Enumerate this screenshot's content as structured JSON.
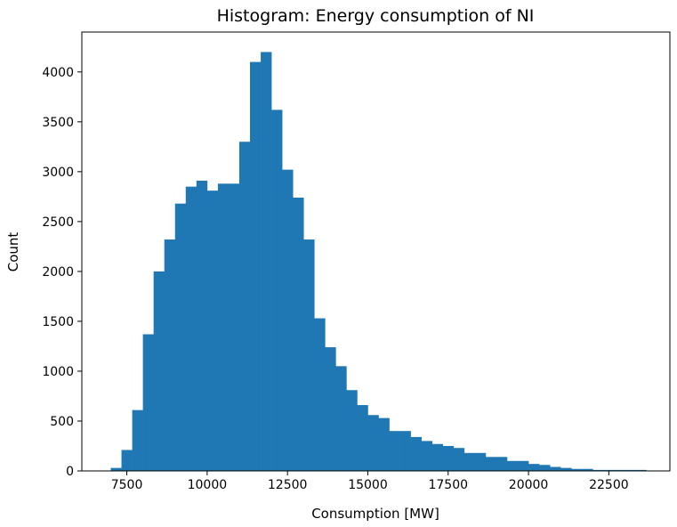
{
  "chart_data": {
    "type": "bar",
    "title": "Histogram: Energy consumption of NI",
    "xlabel": "Consumption [MW]",
    "ylabel": "Count",
    "xlim": [
      6100,
      24400
    ],
    "ylim": [
      0,
      4400
    ],
    "x_ticks": [
      7500,
      10000,
      12500,
      15000,
      17500,
      20000,
      22500
    ],
    "y_ticks": [
      0,
      500,
      1000,
      1500,
      2000,
      2500,
      3000,
      3500,
      4000
    ],
    "bin_edges": [
      7000,
      7333,
      7667,
      8000,
      8333,
      8667,
      9000,
      9333,
      9667,
      10000,
      10333,
      10667,
      11000,
      11333,
      11667,
      12000,
      12333,
      12667,
      13000,
      13333,
      13667,
      14000,
      14333,
      14667,
      15000,
      15333,
      15667,
      16000,
      16333,
      16667,
      17000,
      17333,
      17667,
      18000,
      18333,
      18667,
      19000,
      19333,
      19667,
      20000,
      20333,
      20667,
      21000,
      21333,
      21667,
      22000,
      22333,
      22667,
      23000,
      23333,
      23667
    ],
    "values": [
      30,
      210,
      610,
      1370,
      2000,
      2320,
      2680,
      2850,
      2910,
      2810,
      2880,
      2880,
      3300,
      4100,
      4200,
      3620,
      3020,
      2740,
      2320,
      1530,
      1240,
      1050,
      810,
      660,
      560,
      530,
      400,
      400,
      340,
      300,
      270,
      250,
      230,
      180,
      180,
      140,
      140,
      100,
      100,
      70,
      60,
      40,
      30,
      20,
      20,
      10,
      10,
      10,
      10,
      10
    ],
    "bar_color": "#1f77b4",
    "grid": false,
    "legend": "none"
  }
}
